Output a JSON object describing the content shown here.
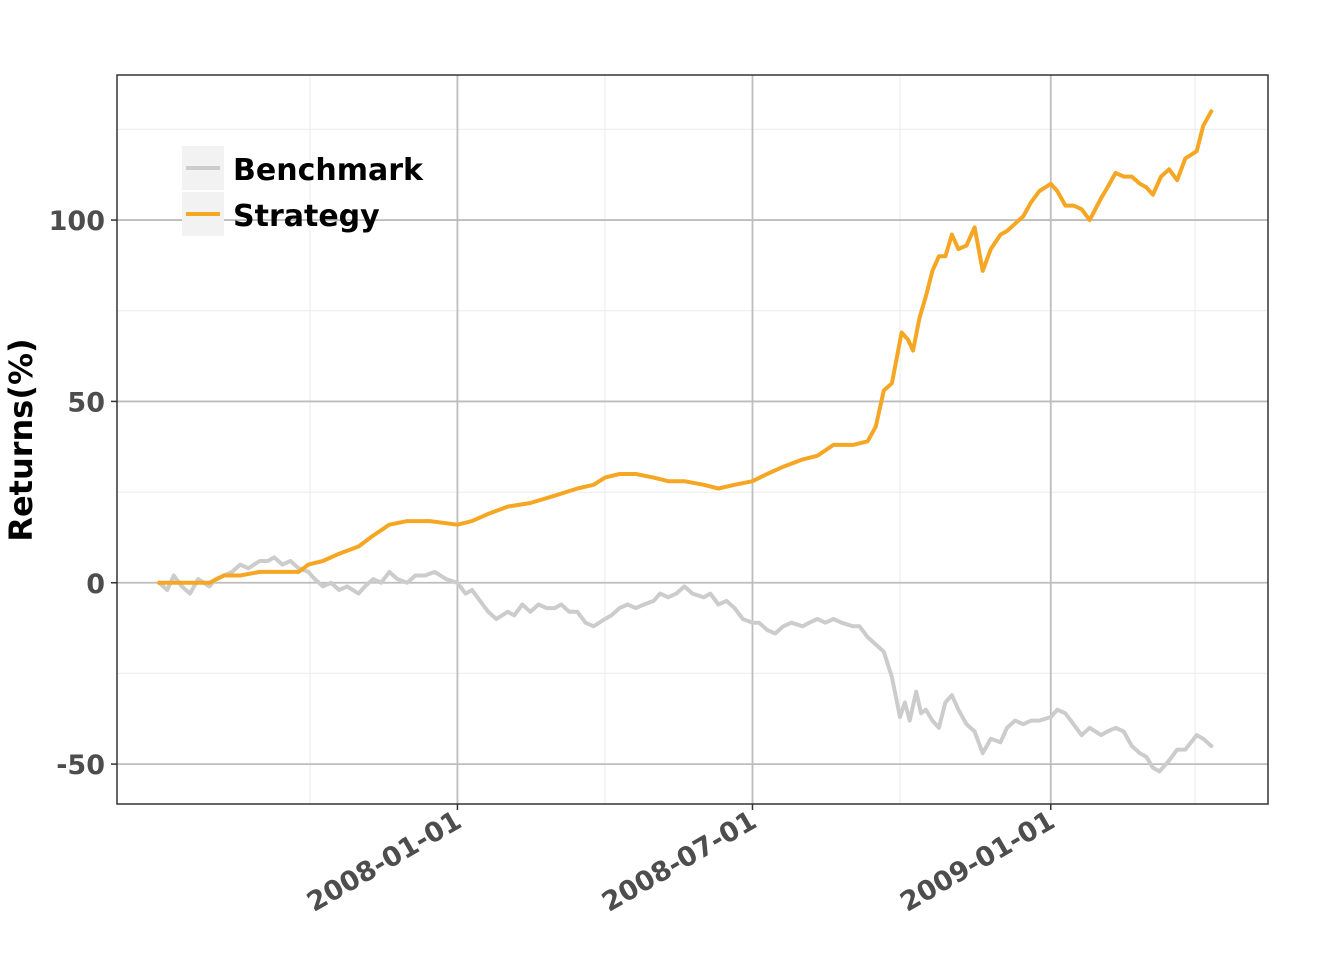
{
  "chart_data": {
    "type": "line",
    "title": "",
    "xlabel": "",
    "ylabel": "Returns(%)",
    "x_tick_labels": [
      "2008-01-01",
      "2008-07-01",
      "2009-01-01"
    ],
    "y_tick_labels": [
      "-50",
      "0",
      "50",
      "100"
    ],
    "ylim": [
      -61,
      140
    ],
    "xlim": [
      "2007-06-05",
      "2009-05-15"
    ],
    "grid": true,
    "legend_position": "top-left",
    "series": [
      {
        "name": "Benchmark",
        "color": "#cccccc",
        "points": [
          [
            "2007-07-01",
            0
          ],
          [
            "2007-07-06",
            -2
          ],
          [
            "2007-07-10",
            2
          ],
          [
            "2007-07-15",
            -1
          ],
          [
            "2007-07-20",
            -3
          ],
          [
            "2007-07-25",
            1
          ],
          [
            "2007-08-01",
            -1
          ],
          [
            "2007-08-05",
            1
          ],
          [
            "2007-08-10",
            2
          ],
          [
            "2007-08-15",
            3
          ],
          [
            "2007-08-20",
            5
          ],
          [
            "2007-08-25",
            4
          ],
          [
            "2007-09-01",
            6
          ],
          [
            "2007-09-06",
            6
          ],
          [
            "2007-09-10",
            7
          ],
          [
            "2007-09-15",
            5
          ],
          [
            "2007-09-20",
            6
          ],
          [
            "2007-09-25",
            4
          ],
          [
            "2007-10-01",
            3
          ],
          [
            "2007-10-05",
            1
          ],
          [
            "2007-10-10",
            -1
          ],
          [
            "2007-10-15",
            0
          ],
          [
            "2007-10-20",
            -2
          ],
          [
            "2007-10-25",
            -1
          ],
          [
            "2007-11-01",
            -3
          ],
          [
            "2007-11-05",
            -1
          ],
          [
            "2007-11-10",
            1
          ],
          [
            "2007-11-15",
            0
          ],
          [
            "2007-11-20",
            3
          ],
          [
            "2007-11-25",
            1
          ],
          [
            "2007-12-01",
            0
          ],
          [
            "2007-12-06",
            2
          ],
          [
            "2007-12-12",
            2
          ],
          [
            "2007-12-18",
            3
          ],
          [
            "2007-12-25",
            1
          ],
          [
            "2008-01-01",
            0
          ],
          [
            "2008-01-06",
            -3
          ],
          [
            "2008-01-10",
            -2
          ],
          [
            "2008-01-15",
            -5
          ],
          [
            "2008-01-20",
            -8
          ],
          [
            "2008-01-25",
            -10
          ],
          [
            "2008-02-01",
            -8
          ],
          [
            "2008-02-05",
            -9
          ],
          [
            "2008-02-10",
            -6
          ],
          [
            "2008-02-15",
            -8
          ],
          [
            "2008-02-20",
            -6
          ],
          [
            "2008-02-25",
            -7
          ],
          [
            "2008-03-01",
            -7
          ],
          [
            "2008-03-05",
            -6
          ],
          [
            "2008-03-10",
            -8
          ],
          [
            "2008-03-15",
            -8
          ],
          [
            "2008-03-20",
            -11
          ],
          [
            "2008-03-25",
            -12
          ],
          [
            "2008-04-01",
            -10
          ],
          [
            "2008-04-05",
            -9
          ],
          [
            "2008-04-10",
            -7
          ],
          [
            "2008-04-15",
            -6
          ],
          [
            "2008-04-20",
            -7
          ],
          [
            "2008-04-25",
            -6
          ],
          [
            "2008-05-01",
            -5
          ],
          [
            "2008-05-05",
            -3
          ],
          [
            "2008-05-10",
            -4
          ],
          [
            "2008-05-15",
            -3
          ],
          [
            "2008-05-20",
            -1
          ],
          [
            "2008-05-25",
            -3
          ],
          [
            "2008-06-01",
            -4
          ],
          [
            "2008-06-05",
            -3
          ],
          [
            "2008-06-10",
            -6
          ],
          [
            "2008-06-15",
            -5
          ],
          [
            "2008-06-20",
            -7
          ],
          [
            "2008-06-25",
            -10
          ],
          [
            "2008-07-01",
            -11
          ],
          [
            "2008-07-05",
            -11
          ],
          [
            "2008-07-10",
            -13
          ],
          [
            "2008-07-15",
            -14
          ],
          [
            "2008-07-20",
            -12
          ],
          [
            "2008-07-25",
            -11
          ],
          [
            "2008-08-01",
            -12
          ],
          [
            "2008-08-05",
            -11
          ],
          [
            "2008-08-10",
            -10
          ],
          [
            "2008-08-15",
            -11
          ],
          [
            "2008-08-20",
            -10
          ],
          [
            "2008-08-25",
            -11
          ],
          [
            "2008-09-01",
            -12
          ],
          [
            "2008-09-05",
            -12
          ],
          [
            "2008-09-10",
            -15
          ],
          [
            "2008-09-15",
            -17
          ],
          [
            "2008-09-20",
            -19
          ],
          [
            "2008-09-25",
            -26
          ],
          [
            "2008-09-30",
            -37
          ],
          [
            "2008-10-03",
            -33
          ],
          [
            "2008-10-06",
            -38
          ],
          [
            "2008-10-10",
            -30
          ],
          [
            "2008-10-13",
            -36
          ],
          [
            "2008-10-16",
            -35
          ],
          [
            "2008-10-20",
            -38
          ],
          [
            "2008-10-24",
            -40
          ],
          [
            "2008-10-28",
            -33
          ],
          [
            "2008-11-01",
            -31
          ],
          [
            "2008-11-05",
            -35
          ],
          [
            "2008-11-10",
            -39
          ],
          [
            "2008-11-15",
            -41
          ],
          [
            "2008-11-20",
            -47
          ],
          [
            "2008-11-25",
            -43
          ],
          [
            "2008-12-01",
            -44
          ],
          [
            "2008-12-05",
            -40
          ],
          [
            "2008-12-10",
            -38
          ],
          [
            "2008-12-15",
            -39
          ],
          [
            "2008-12-20",
            -38
          ],
          [
            "2008-12-25",
            -38
          ],
          [
            "2009-01-01",
            -37
          ],
          [
            "2009-01-05",
            -35
          ],
          [
            "2009-01-10",
            -36
          ],
          [
            "2009-01-15",
            -39
          ],
          [
            "2009-01-20",
            -42
          ],
          [
            "2009-01-25",
            -40
          ],
          [
            "2009-02-01",
            -42
          ],
          [
            "2009-02-05",
            -41
          ],
          [
            "2009-02-10",
            -40
          ],
          [
            "2009-02-15",
            -41
          ],
          [
            "2009-02-20",
            -45
          ],
          [
            "2009-02-25",
            -47
          ],
          [
            "2009-03-01",
            -48
          ],
          [
            "2009-03-05",
            -51
          ],
          [
            "2009-03-09",
            -52
          ],
          [
            "2009-03-15",
            -49
          ],
          [
            "2009-03-20",
            -46
          ],
          [
            "2009-03-25",
            -46
          ],
          [
            "2009-04-01",
            -42
          ],
          [
            "2009-04-05",
            -43
          ],
          [
            "2009-04-10",
            -45
          ]
        ]
      },
      {
        "name": "Strategy",
        "color": "#f5a623",
        "points": [
          [
            "2007-07-01",
            0
          ],
          [
            "2007-07-10",
            0
          ],
          [
            "2007-07-20",
            0
          ],
          [
            "2007-08-01",
            0
          ],
          [
            "2007-08-10",
            2
          ],
          [
            "2007-08-20",
            2
          ],
          [
            "2007-09-01",
            3
          ],
          [
            "2007-09-15",
            3
          ],
          [
            "2007-09-25",
            3
          ],
          [
            "2007-10-01",
            5
          ],
          [
            "2007-10-10",
            6
          ],
          [
            "2007-10-20",
            8
          ],
          [
            "2007-11-01",
            10
          ],
          [
            "2007-11-10",
            13
          ],
          [
            "2007-11-20",
            16
          ],
          [
            "2007-12-01",
            17
          ],
          [
            "2007-12-15",
            17
          ],
          [
            "2008-01-01",
            16
          ],
          [
            "2008-01-10",
            17
          ],
          [
            "2008-01-20",
            19
          ],
          [
            "2008-02-01",
            21
          ],
          [
            "2008-02-15",
            22
          ],
          [
            "2008-03-01",
            24
          ],
          [
            "2008-03-15",
            26
          ],
          [
            "2008-03-25",
            27
          ],
          [
            "2008-04-01",
            29
          ],
          [
            "2008-04-10",
            30
          ],
          [
            "2008-04-20",
            30
          ],
          [
            "2008-05-01",
            29
          ],
          [
            "2008-05-10",
            28
          ],
          [
            "2008-05-20",
            28
          ],
          [
            "2008-06-01",
            27
          ],
          [
            "2008-06-10",
            26
          ],
          [
            "2008-06-20",
            27
          ],
          [
            "2008-07-01",
            28
          ],
          [
            "2008-07-10",
            30
          ],
          [
            "2008-07-20",
            32
          ],
          [
            "2008-08-01",
            34
          ],
          [
            "2008-08-10",
            35
          ],
          [
            "2008-08-20",
            38
          ],
          [
            "2008-09-01",
            38
          ],
          [
            "2008-09-10",
            39
          ],
          [
            "2008-09-15",
            43
          ],
          [
            "2008-09-20",
            53
          ],
          [
            "2008-09-25",
            55
          ],
          [
            "2008-10-01",
            69
          ],
          [
            "2008-10-05",
            67
          ],
          [
            "2008-10-08",
            64
          ],
          [
            "2008-10-12",
            73
          ],
          [
            "2008-10-16",
            79
          ],
          [
            "2008-10-20",
            86
          ],
          [
            "2008-10-24",
            90
          ],
          [
            "2008-10-28",
            90
          ],
          [
            "2008-11-01",
            96
          ],
          [
            "2008-11-05",
            92
          ],
          [
            "2008-11-10",
            93
          ],
          [
            "2008-11-15",
            98
          ],
          [
            "2008-11-20",
            86
          ],
          [
            "2008-11-25",
            92
          ],
          [
            "2008-12-01",
            96
          ],
          [
            "2008-12-05",
            97
          ],
          [
            "2008-12-10",
            99
          ],
          [
            "2008-12-15",
            101
          ],
          [
            "2008-12-20",
            105
          ],
          [
            "2008-12-25",
            108
          ],
          [
            "2009-01-01",
            110
          ],
          [
            "2009-01-05",
            108
          ],
          [
            "2009-01-10",
            104
          ],
          [
            "2009-01-15",
            104
          ],
          [
            "2009-01-20",
            103
          ],
          [
            "2009-01-25",
            100
          ],
          [
            "2009-02-01",
            106
          ],
          [
            "2009-02-05",
            109
          ],
          [
            "2009-02-10",
            113
          ],
          [
            "2009-02-15",
            112
          ],
          [
            "2009-02-20",
            112
          ],
          [
            "2009-02-25",
            110
          ],
          [
            "2009-03-01",
            109
          ],
          [
            "2009-03-05",
            107
          ],
          [
            "2009-03-10",
            112
          ],
          [
            "2009-03-15",
            114
          ],
          [
            "2009-03-20",
            111
          ],
          [
            "2009-03-25",
            117
          ],
          [
            "2009-04-01",
            119
          ],
          [
            "2009-04-05",
            126
          ],
          [
            "2009-04-10",
            130
          ]
        ]
      }
    ]
  }
}
